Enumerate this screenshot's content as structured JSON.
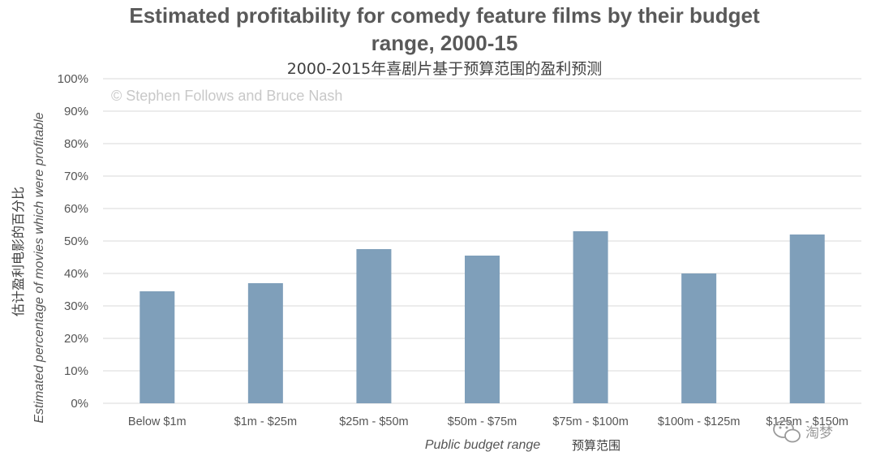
{
  "chart_data": {
    "type": "bar",
    "title_lines": [
      "Estimated profitability for comedy feature films by their budget",
      "range, 2000-15"
    ],
    "subtitle": "2000-2015年喜剧片基于预算范围的盈利预测",
    "credit": "© Stephen Follows and Bruce Nash",
    "ylabel_en": "Estimated percentage of movies which were profitable",
    "ylabel_zh": "估计盈利电影的百分比",
    "xlabel_en": "Public budget range",
    "xlabel_zh": "预算范围",
    "categories": [
      "Below $1m",
      "$1m - $25m",
      "$25m - $50m",
      "$50m - $75m",
      "$75m - $100m",
      "$100m - $125m",
      "$125m - $150m"
    ],
    "values": [
      34.5,
      37,
      47.5,
      45.5,
      53,
      40,
      52
    ],
    "ylim": [
      0,
      100
    ],
    "yticks": [
      "0%",
      "10%",
      "20%",
      "30%",
      "40%",
      "50%",
      "60%",
      "70%",
      "80%",
      "90%",
      "100%"
    ],
    "grid": true,
    "bar_color": "#7f9fba"
  },
  "watermark": {
    "text": "淘梦",
    "icon": "wechat-chat-icon"
  }
}
